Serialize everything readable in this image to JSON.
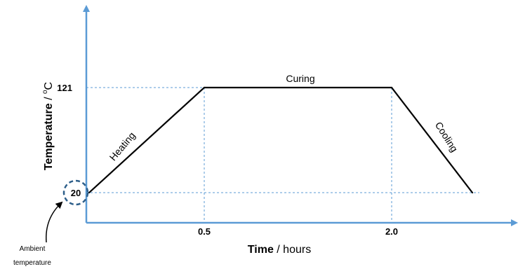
{
  "chart_data": {
    "type": "line",
    "ylabel_bold": "Temperature",
    "ylabel_rest": " / ",
    "ylabel_unit_sup": "o",
    "ylabel_unit": "C",
    "xlabel_bold": "Time",
    "xlabel_rest": " / hours",
    "x_ticks": [
      {
        "value": 0.5,
        "label": "0.5"
      },
      {
        "value": 2.0,
        "label": "2.0"
      }
    ],
    "y_ticks": [
      {
        "value": 121,
        "label": "121"
      },
      {
        "value": 20,
        "label": "20"
      }
    ],
    "points": [
      {
        "x": 0.0,
        "y": 20
      },
      {
        "x": 0.5,
        "y": 121
      },
      {
        "x": 2.0,
        "y": 121
      },
      {
        "x": 2.57,
        "y": 20
      }
    ],
    "segment_labels": [
      "Heating",
      "Curing",
      "Cooling"
    ],
    "annotation": {
      "line1": "Ambient",
      "line2": "temperature"
    },
    "colors": {
      "axis": "#5b9bd5",
      "line": "#000000",
      "guides": "#5b9bd5",
      "highlight": "#2e5f8a"
    }
  }
}
